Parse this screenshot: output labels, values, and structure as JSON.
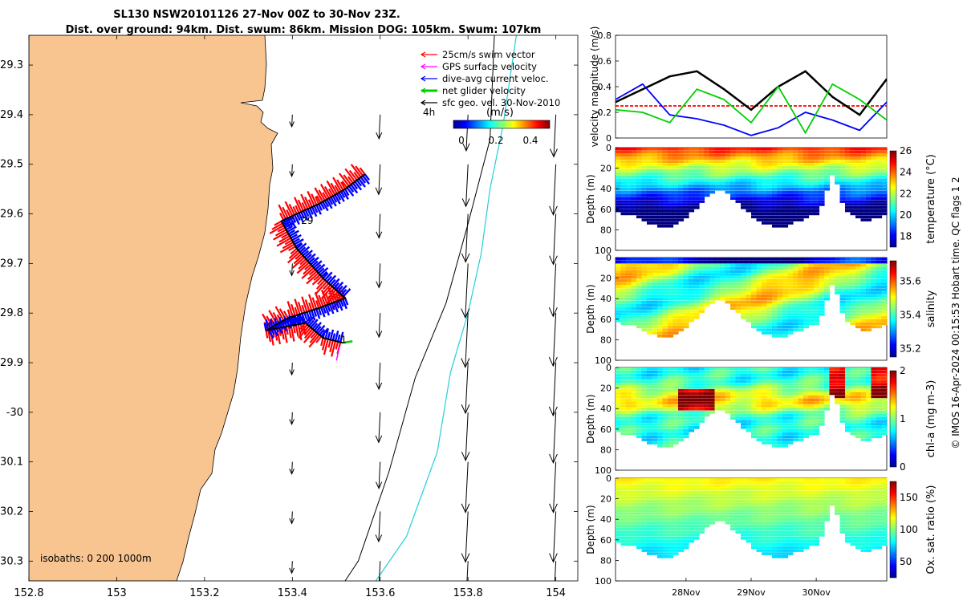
{
  "title": {
    "line1": "SL130 NSW20101126 27-Nov 00Z to 30-Nov 23Z.",
    "line2": "Dist. over ground: 94km. Dist. swum: 86km. Mission DOG: 105km. Swum: 107km"
  },
  "colors": {
    "land": "#f8c591",
    "swim": "#ff0000",
    "gps": "#ff00ff",
    "dive": "#0000ff",
    "net": "#00d000",
    "geo": "#000000",
    "isobath200": "#000000",
    "isobath1000": "#22d0d8"
  },
  "chart_data": [
    {
      "type": "scatter",
      "name": "map",
      "xlim": [
        152.8,
        154.05
      ],
      "ylim": [
        -30.34,
        -29.24
      ],
      "xticks": [
        152.8,
        153,
        153.2,
        153.4,
        153.6,
        153.8,
        154
      ],
      "xtick_labels": [
        "152.8",
        "153",
        "153.2",
        "153.4",
        "153.6",
        "153.8",
        "154"
      ],
      "yticks": [
        -29.3,
        -29.4,
        -29.5,
        -29.6,
        -29.7,
        -29.8,
        -29.9,
        -30,
        -30.1,
        -30.2,
        -30.3
      ],
      "ytick_labels": [
        "29.3",
        "29.4",
        "29.5",
        "29.6",
        "29.7",
        "29.8",
        "29.9",
        "-30",
        "30.1",
        "30.2",
        "30.3"
      ],
      "legend": [
        {
          "label": "25cm/s swim vector",
          "color": "#ff0000",
          "key": "swim"
        },
        {
          "label": "GPS surface velocity",
          "color": "#ff00ff",
          "key": "gps"
        },
        {
          "label": "dive-avg current veloc.",
          "color": "#0000ff",
          "key": "dive"
        },
        {
          "label": "net glider velocity",
          "color": "#00d000",
          "key": "net"
        },
        {
          "label": "sfc geo. vel. 30-Nov-2010",
          "color": "#000000",
          "key": "geo"
        }
      ],
      "legend_position": "top-right",
      "time_step_label": "4h",
      "colorbar": {
        "label": "(m/s)",
        "ticks": [
          "0",
          "0.2",
          "0.4"
        ],
        "range": [
          0,
          0.5
        ]
      },
      "isobaths_label": "isobaths: 0   200  1000m",
      "track_labels": [
        {
          "text": "29",
          "lon": 153.42,
          "lat": -29.62
        },
        {
          "text": "1",
          "lon": 153.51,
          "lat": -29.86
        }
      ],
      "glider_track": [
        [
          153.565,
          -29.52
        ],
        [
          153.52,
          -29.55
        ],
        [
          153.46,
          -29.58
        ],
        [
          153.41,
          -29.6
        ],
        [
          153.375,
          -29.615
        ],
        [
          153.41,
          -29.67
        ],
        [
          153.47,
          -29.73
        ],
        [
          153.52,
          -29.77
        ],
        [
          153.46,
          -29.79
        ],
        [
          153.39,
          -29.81
        ],
        [
          153.34,
          -29.835
        ],
        [
          153.37,
          -29.83
        ],
        [
          153.43,
          -29.82
        ],
        [
          153.47,
          -29.85
        ],
        [
          153.515,
          -29.86
        ]
      ],
      "geo_vectors": {
        "lons": [
          153.4,
          153.6,
          153.8,
          154.0
        ],
        "lats": [
          -29.4,
          -29.5,
          -29.6,
          -29.7,
          -29.8,
          -29.9,
          -30.0,
          -30.1,
          -30.2,
          -30.3
        ],
        "speeds": [
          [
            0.1,
            0.2,
            0.3,
            0.35
          ],
          [
            0.1,
            0.25,
            0.35,
            0.42
          ],
          [
            0.1,
            0.2,
            0.4,
            0.42
          ],
          [
            0.1,
            0.2,
            0.45,
            0.44
          ],
          [
            0.1,
            0.2,
            0.45,
            0.44
          ],
          [
            0.1,
            0.22,
            0.42,
            0.44
          ],
          [
            0.1,
            0.25,
            0.4,
            0.42
          ],
          [
            0.1,
            0.22,
            0.42,
            0.42
          ],
          [
            0.1,
            0.25,
            0.42,
            0.42
          ],
          [
            0.1,
            0.25,
            0.4,
            0.4
          ]
        ]
      },
      "isobath_200m": [
        [
          153.86,
          -29.24
        ],
        [
          153.85,
          -29.45
        ],
        [
          153.8,
          -29.62
        ],
        [
          153.75,
          -29.78
        ],
        [
          153.68,
          -29.93
        ],
        [
          153.62,
          -30.12
        ],
        [
          153.55,
          -30.3
        ],
        [
          153.52,
          -30.34
        ]
      ],
      "isobath_1000m": [
        [
          153.91,
          -29.24
        ],
        [
          153.88,
          -29.42
        ],
        [
          153.85,
          -29.55
        ],
        [
          153.83,
          -29.68
        ],
        [
          153.8,
          -29.8
        ],
        [
          153.76,
          -29.92
        ],
        [
          153.73,
          -30.08
        ],
        [
          153.66,
          -30.25
        ],
        [
          153.59,
          -30.34
        ]
      ]
    },
    {
      "type": "line",
      "name": "velocity",
      "ylabel": "velocity magnitude (m/s)",
      "ylim": [
        0,
        0.8
      ],
      "yticks": [
        "0",
        "0.2",
        "0.4",
        "0.6",
        "0.8"
      ],
      "x": [
        0,
        0.1,
        0.2,
        0.3,
        0.4,
        0.5,
        0.6,
        0.7,
        0.8,
        0.9,
        1.0
      ],
      "series": [
        {
          "name": "swim",
          "color": "#ff0000",
          "values": [
            0.25,
            0.25,
            0.25,
            0.25,
            0.25,
            0.25,
            0.25,
            0.25,
            0.25,
            0.25,
            0.25
          ]
        },
        {
          "name": "sfc geo",
          "color": "#000000",
          "values": [
            0.28,
            0.38,
            0.48,
            0.52,
            0.38,
            0.22,
            0.4,
            0.52,
            0.32,
            0.18,
            0.46
          ]
        },
        {
          "name": "dive-avg",
          "color": "#0000ff",
          "values": [
            0.3,
            0.42,
            0.18,
            0.15,
            0.1,
            0.02,
            0.08,
            0.2,
            0.14,
            0.06,
            0.28
          ]
        },
        {
          "name": "net glider",
          "color": "#00d000",
          "values": [
            0.22,
            0.2,
            0.12,
            0.38,
            0.3,
            0.12,
            0.4,
            0.04,
            0.42,
            0.3,
            0.14
          ]
        }
      ]
    },
    {
      "type": "heatmap",
      "name": "temperature",
      "ylabel": "Depth (m)",
      "clabel": "temperature (°C)",
      "cticks": [
        "18",
        "20",
        "22",
        "24",
        "26"
      ],
      "crange": [
        17,
        26
      ],
      "depth_ticks": [
        "0",
        "20",
        "40",
        "60",
        "80",
        "100"
      ]
    },
    {
      "type": "heatmap",
      "name": "salinity",
      "ylabel": "Depth (m)",
      "clabel": "salinity",
      "cticks": [
        "35.2",
        "35.4",
        "35.6"
      ],
      "crange": [
        35.15,
        35.72
      ],
      "depth_ticks": [
        "0",
        "20",
        "40",
        "60",
        "80",
        "100"
      ]
    },
    {
      "type": "heatmap",
      "name": "chla",
      "ylabel": "Depth (m)",
      "clabel": "chl-a (mg m-3)",
      "cticks": [
        "0",
        "1",
        "2"
      ],
      "crange": [
        0,
        2
      ],
      "depth_ticks": [
        "0",
        "20",
        "40",
        "60",
        "80",
        "100"
      ]
    },
    {
      "type": "heatmap",
      "name": "oxygen",
      "ylabel": "Depth (m)",
      "clabel": "Ox. sat. ratio (%)",
      "cticks": [
        "50",
        "100",
        "150"
      ],
      "crange": [
        25,
        175
      ],
      "depth_ticks": [
        "0",
        "20",
        "40",
        "60",
        "80",
        "100"
      ],
      "xtick_labels": [
        "28Nov",
        "29Nov",
        "30Nov"
      ]
    }
  ],
  "side_note": "© IMOS 16-Apr-2024 00:15:53 Hobart time. QC flags 1 2"
}
